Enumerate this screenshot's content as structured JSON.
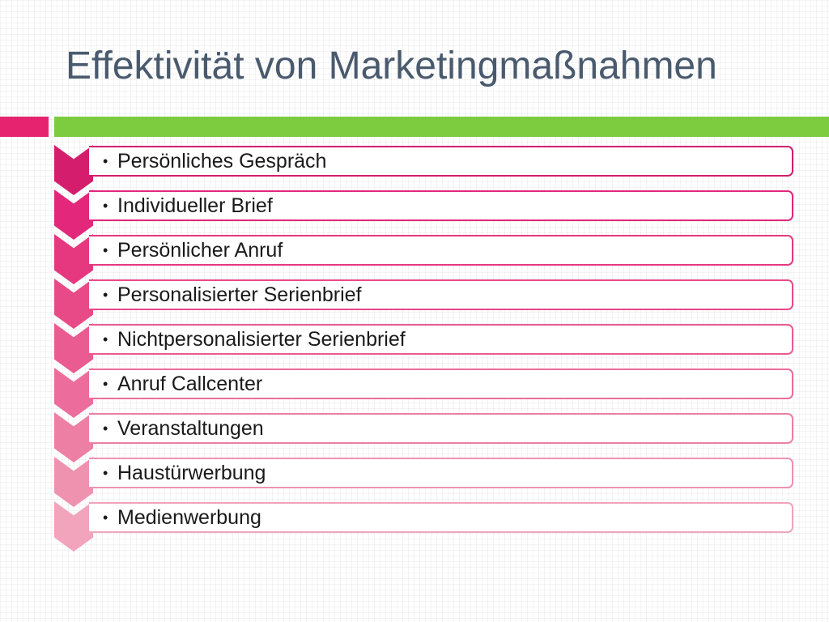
{
  "slide": {
    "title": "Effektivität von Marketingmaßnahmen"
  },
  "colors": {
    "title": "#4a5a6e",
    "accent_pink": "#e6236f",
    "accent_green": "#7dcb3e",
    "chevron_scale": [
      "#d41d6c",
      "#e3277b",
      "#e6387f",
      "#e84a88",
      "#ea5b92",
      "#ec6d9b",
      "#ed7fa5",
      "#ef92b0",
      "#f1a4bc"
    ]
  },
  "list": {
    "bullet": "•",
    "items": [
      "Persönliches Gespräch",
      "Individueller Brief",
      "Persönlicher Anruf",
      "Personalisierter Serienbrief",
      "Nichtpersonalisierter Serienbrief",
      "Anruf Callcenter",
      "Veranstaltungen",
      "Haustürwerbung",
      "Medienwerbung"
    ]
  }
}
